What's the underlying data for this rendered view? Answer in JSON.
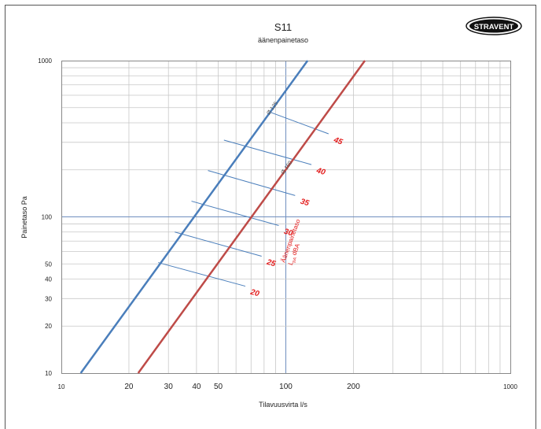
{
  "chart_data": {
    "type": "line",
    "title": "S11",
    "subtitle": "äänenpainetaso",
    "xlabel": "Tilavuusvirta l/s",
    "ylabel": "Painetaso Pa",
    "xscale": "log",
    "yscale": "log",
    "xlim": [
      10,
      1000
    ],
    "ylim": [
      10,
      1000
    ],
    "x_tick_labels": [
      "10",
      "20",
      "30",
      "40",
      "50",
      "100",
      "200",
      "1000"
    ],
    "x_tick_values": [
      10,
      20,
      30,
      40,
      50,
      100,
      200,
      1000
    ],
    "y_tick_labels": [
      "10",
      "20",
      "30",
      "40",
      "50",
      "100",
      "1000"
    ],
    "y_tick_values": [
      10,
      20,
      30,
      40,
      50,
      100,
      1000
    ],
    "grid": true,
    "series": [
      {
        "name": "Ø 125",
        "color": "#4a7ebb",
        "x": [
          12.2,
          125
        ],
        "y": [
          10,
          1000
        ]
      },
      {
        "name": "Ø 160",
        "color": "#be4b48",
        "x": [
          22.0,
          225
        ],
        "y": [
          10,
          1000
        ]
      }
    ],
    "sound_level_lines": {
      "color": "#4a7ebb",
      "label_color": "#e31c1c",
      "lines": [
        {
          "dBA": "20",
          "x": [
            27,
            66
          ],
          "y": [
            51,
            36
          ]
        },
        {
          "dBA": "25",
          "x": [
            32,
            78
          ],
          "y": [
            80,
            56
          ]
        },
        {
          "dBA": "30",
          "x": [
            38,
            93
          ],
          "y": [
            126,
            88
          ]
        },
        {
          "dBA": "35",
          "x": [
            45,
            110
          ],
          "y": [
            198,
            137
          ]
        },
        {
          "dBA": "40",
          "x": [
            53,
            130
          ],
          "y": [
            310,
            216
          ]
        },
        {
          "dBA": "45",
          "x": [
            85,
            155
          ],
          "y": [
            468,
            340
          ]
        }
      ]
    },
    "annotation": {
      "line1": "Äänenpainetaso",
      "line2": "L",
      "sub": "pA",
      "line2_tail": " dBA"
    }
  },
  "logo": {
    "text": "STRAVENT"
  }
}
